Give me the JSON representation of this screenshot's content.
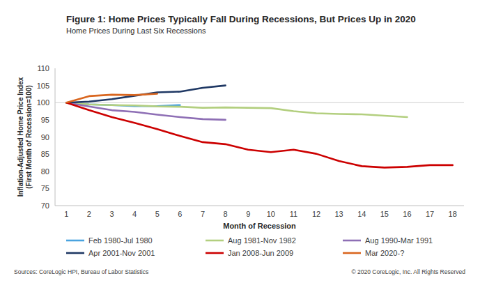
{
  "chart_data": {
    "type": "line",
    "title": "Figure 1: Home Prices Typically Fall During Recessions, But Prices Up in 2020",
    "subtitle": "Home Prices During Last Six Recessions",
    "x_label": "Month of Recession",
    "y_label": [
      "Inflation-Adjusted Home Price Index",
      "(First Month of Recession=100)"
    ],
    "categories": [
      1,
      2,
      3,
      4,
      5,
      6,
      7,
      8,
      9,
      10,
      11,
      12,
      13,
      14,
      15,
      16,
      17,
      18
    ],
    "ylim": [
      70,
      110
    ],
    "yticks": [
      70,
      75,
      80,
      85,
      90,
      95,
      100,
      105,
      110
    ],
    "baseline": 100,
    "grid": false,
    "legend": "bottom",
    "series": [
      {
        "name": "Feb 1980-Jul 1980",
        "color": "#4aa3df",
        "values": [
          100,
          99.5,
          99.3,
          99.0,
          99.0,
          99.3,
          null,
          null,
          null,
          null,
          null,
          null,
          null,
          null,
          null,
          null,
          null,
          null
        ]
      },
      {
        "name": "Aug 1981-Nov 1982",
        "color": "#b3cf7f",
        "values": [
          100,
          99.5,
          99.3,
          99.2,
          98.9,
          98.8,
          98.5,
          98.6,
          98.5,
          98.4,
          97.5,
          96.9,
          96.7,
          96.6,
          96.2,
          95.8,
          null,
          null
        ]
      },
      {
        "name": "Aug 1990-Mar 1991",
        "color": "#8e6fb5",
        "values": [
          100,
          98.9,
          97.8,
          97.3,
          96.5,
          95.8,
          95.2,
          95.0,
          null,
          null,
          null,
          null,
          null,
          null,
          null,
          null,
          null,
          null
        ]
      },
      {
        "name": "Apr 2001-Nov 2001",
        "color": "#1f3864",
        "values": [
          100,
          100.3,
          101.0,
          102.0,
          103.0,
          103.2,
          104.3,
          105.0,
          null,
          null,
          null,
          null,
          null,
          null,
          null,
          null,
          null,
          null
        ]
      },
      {
        "name": "Jan 2008-Jun 2009",
        "color": "#cc0000",
        "values": [
          100,
          97.8,
          95.8,
          94.1,
          92.3,
          90.3,
          88.5,
          87.9,
          86.3,
          85.6,
          86.3,
          85.1,
          83.0,
          81.5,
          81.1,
          81.3,
          81.8,
          81.8
        ]
      },
      {
        "name": "Mar 2020-?",
        "color": "#d9661f",
        "values": [
          100,
          101.9,
          102.3,
          102.2,
          102.6,
          null,
          null,
          null,
          null,
          null,
          null,
          null,
          null,
          null,
          null,
          null,
          null,
          null
        ]
      }
    ],
    "sources": "Sources: CoreLogic HPI, Bureau of Labor Statistics",
    "copyright": "© 2020 CoreLogic, Inc. All Rights Reserved"
  }
}
